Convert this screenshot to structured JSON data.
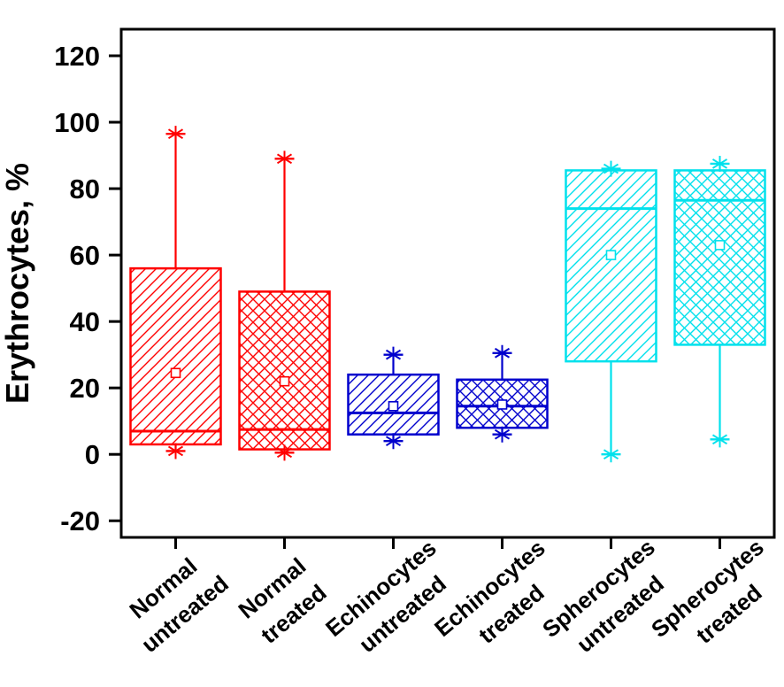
{
  "chart_data": {
    "type": "box",
    "title": "",
    "xlabel": "",
    "ylabel": "Erythrocytes, %",
    "ylim": [
      -25,
      128
    ],
    "yticks": [
      -20,
      0,
      20,
      40,
      60,
      80,
      100,
      120
    ],
    "grid": false,
    "legend": "none",
    "axis_color": "#000000",
    "background_color": "#ffffff",
    "marker_names": {
      "whisker_end": "six-point-star",
      "mean": "open-square"
    },
    "categories": [
      {
        "label": [
          "Normal",
          "untreated"
        ],
        "color": "#FF0000",
        "hatch": "diagonal",
        "q1": 3,
        "median": 7,
        "q3": 56,
        "whisker_low": 1,
        "whisker_high": 96.5,
        "mean": 24.5
      },
      {
        "label": [
          "Normal",
          "treated"
        ],
        "color": "#FF0000",
        "hatch": "cross",
        "q1": 1.5,
        "median": 7.5,
        "q3": 49,
        "whisker_low": 0.5,
        "whisker_high": 89,
        "mean": 22
      },
      {
        "label": [
          "Echinocytes",
          "untreated"
        ],
        "color": "#0000CD",
        "hatch": "diagonal",
        "q1": 6,
        "median": 12.5,
        "q3": 24,
        "whisker_low": 4,
        "whisker_high": 30,
        "mean": 14.5
      },
      {
        "label": [
          "Echinocytes",
          "treated"
        ],
        "color": "#0000CD",
        "hatch": "cross",
        "q1": 8,
        "median": 14.5,
        "q3": 22.5,
        "whisker_low": 6,
        "whisker_high": 30.5,
        "mean": 15
      },
      {
        "label": [
          "Spherocytes",
          "untreated"
        ],
        "color": "#00E1EC",
        "hatch": "diagonal",
        "q1": 28,
        "median": 74,
        "q3": 85.5,
        "whisker_low": 0,
        "whisker_high": 86,
        "mean": 60
      },
      {
        "label": [
          "Spherocytes",
          "treated"
        ],
        "color": "#00E1EC",
        "hatch": "cross",
        "q1": 33,
        "median": 76.5,
        "q3": 85.5,
        "whisker_low": 4.5,
        "whisker_high": 87.5,
        "mean": 63
      }
    ]
  }
}
